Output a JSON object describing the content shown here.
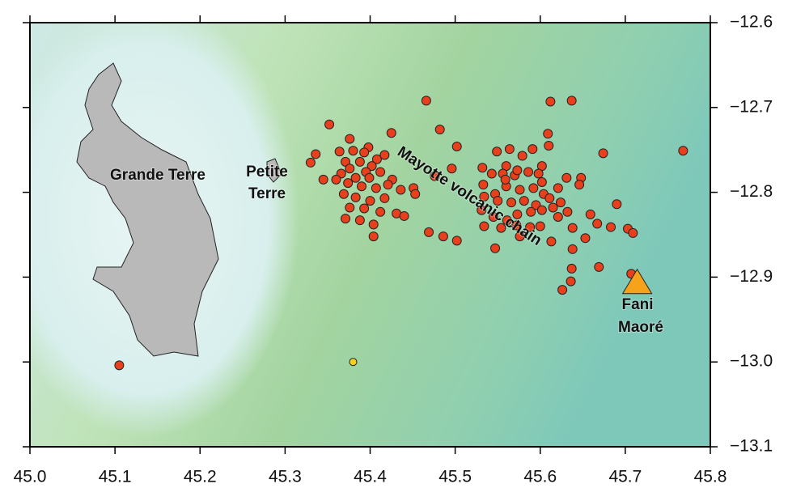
{
  "chart_data": {
    "type": "scatter",
    "xlim": [
      45.0,
      45.8
    ],
    "ylim": [
      -13.1,
      -12.6
    ],
    "xticks": [
      {
        "value": 45.0,
        "label": "45.0"
      },
      45.1,
      45.2,
      45.3,
      45.4,
      45.5,
      45.6,
      45.7,
      45.8
    ],
    "yticks": [
      {
        "value": -12.6,
        "label": "−12.6"
      },
      {
        "value": -12.7,
        "label": "−12.7"
      },
      {
        "value": -12.8,
        "label": "−12.8"
      },
      {
        "value": -12.9,
        "label": "−12.9"
      },
      {
        "value": -13.0,
        "label": "−13.0"
      },
      {
        "value": -13.1,
        "label": "−13.1"
      }
    ],
    "annotations": {
      "grande_terre": "Grande Terre",
      "petite_terre": [
        "Petite",
        "Terre"
      ],
      "volcanic_chain": "Mayotte volcanic chain",
      "fani_maore": [
        "Fani",
        "Maoré"
      ]
    },
    "earthquakes": {
      "color": "#e8401c",
      "x": [
        45.466,
        45.352,
        45.33,
        45.398,
        45.425,
        45.376,
        45.364,
        45.38,
        45.393,
        45.408,
        45.417,
        45.371,
        45.388,
        45.402,
        45.376,
        45.395,
        45.412,
        45.366,
        45.383,
        45.399,
        45.426,
        45.374,
        45.39,
        45.407,
        45.421,
        45.436,
        45.451,
        45.369,
        45.383,
        45.4,
        45.417,
        45.376,
        45.393,
        45.412,
        45.431,
        45.371,
        45.388,
        45.404,
        45.44,
        45.404,
        45.336,
        45.36,
        45.345,
        45.453,
        45.482,
        45.502,
        45.469,
        45.486,
        45.502,
        45.476,
        45.496,
        45.612,
        45.637,
        45.549,
        45.564,
        45.579,
        45.591,
        45.602,
        45.56,
        45.532,
        45.543,
        45.556,
        45.57,
        45.586,
        45.598,
        45.609,
        45.61,
        45.533,
        45.547,
        45.56,
        45.576,
        45.592,
        45.604,
        45.621,
        45.534,
        45.55,
        45.566,
        45.581,
        45.595,
        45.611,
        45.624,
        45.631,
        45.648,
        45.646,
        45.531,
        45.545,
        45.561,
        45.573,
        45.589,
        45.602,
        45.615,
        45.621,
        45.632,
        45.534,
        45.554,
        45.572,
        45.588,
        45.6,
        45.613,
        45.638,
        45.653,
        45.667,
        45.683,
        45.69,
        45.703,
        45.709,
        45.674,
        45.768,
        45.669,
        45.638,
        45.637,
        45.636,
        45.626,
        45.707,
        45.659,
        45.547,
        45.576,
        45.559,
        45.573,
        45.602,
        45.105
      ],
      "y": [
        -12.692,
        -12.72,
        -12.765,
        -12.747,
        -12.73,
        -12.737,
        -12.752,
        -12.751,
        -12.753,
        -12.761,
        -12.756,
        -12.764,
        -12.764,
        -12.769,
        -12.772,
        -12.776,
        -12.776,
        -12.778,
        -12.783,
        -12.783,
        -12.785,
        -12.789,
        -12.793,
        -12.795,
        -12.791,
        -12.797,
        -12.795,
        -12.802,
        -12.806,
        -12.81,
        -12.807,
        -12.818,
        -12.819,
        -12.823,
        -12.825,
        -12.831,
        -12.833,
        -12.838,
        -12.828,
        -12.852,
        -12.755,
        -12.785,
        -12.785,
        -12.802,
        -12.726,
        -12.746,
        -12.847,
        -12.852,
        -12.857,
        -12.781,
        -12.772,
        -12.693,
        -12.692,
        -12.752,
        -12.749,
        -12.757,
        -12.749,
        -12.769,
        -12.769,
        -12.771,
        -12.778,
        -12.778,
        -12.78,
        -12.776,
        -12.778,
        -12.731,
        -12.745,
        -12.791,
        -12.802,
        -12.793,
        -12.797,
        -12.795,
        -12.802,
        -12.795,
        -12.805,
        -12.81,
        -12.812,
        -12.81,
        -12.815,
        -12.807,
        -12.812,
        -12.783,
        -12.783,
        -12.791,
        -12.821,
        -12.829,
        -12.833,
        -12.826,
        -12.823,
        -12.821,
        -12.818,
        -12.829,
        -12.823,
        -12.84,
        -12.842,
        -12.839,
        -12.841,
        -12.84,
        -12.858,
        -12.842,
        -12.854,
        -12.837,
        -12.841,
        -12.814,
        -12.843,
        -12.848,
        -12.754,
        -12.751,
        -12.888,
        -12.867,
        -12.89,
        -12.905,
        -12.915,
        -12.896,
        -12.826,
        -12.866,
        -12.852,
        -12.785,
        -12.774,
        -12.788,
        -13.004
      ]
    },
    "other_event": {
      "color": "#f5d020",
      "x": [
        45.38
      ],
      "y": [
        -13.0
      ]
    },
    "volcano": {
      "color": "#f7a21b",
      "x": [
        45.714
      ],
      "y": [
        -12.907
      ]
    }
  }
}
